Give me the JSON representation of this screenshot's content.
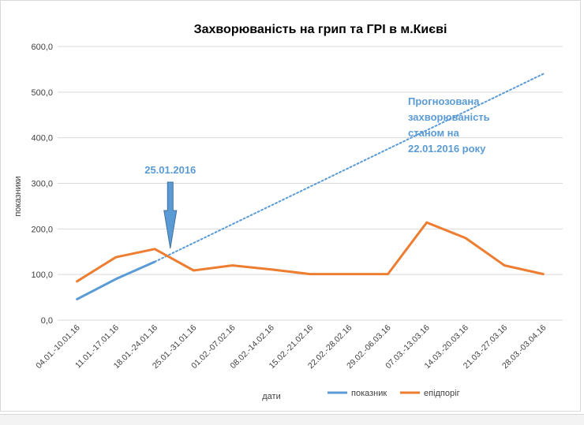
{
  "chart_data": {
    "type": "line",
    "title": "Захворюваність на грип та ГРІ в м.Києві",
    "xlabel": "дати",
    "ylabel": "показники",
    "ylim": [
      0,
      600
    ],
    "yticks": [
      "0,0",
      "100,0",
      "200,0",
      "300,0",
      "400,0",
      "500,0",
      "600,0"
    ],
    "categories": [
      "04.01.-10.01.16",
      "11.01.-17.01.16",
      "18.01.-24.01.16",
      "25.01.-31.01.16",
      "01.02.-07.02.16",
      "08.02.-14.02.16",
      "15.02.-21.02.16",
      "22.02.-28.02.16",
      "29.02.-06.03.16",
      "07.03.-13.03.16",
      "14.03.-20.03.16",
      "21.03.-27.03.16",
      "28.03.-03.04.16"
    ],
    "series": [
      {
        "name": "показник",
        "color": "#5b9bd5",
        "values": [
          46,
          90,
          128,
          null,
          null,
          null,
          null,
          null,
          null,
          null,
          null,
          null,
          null
        ]
      },
      {
        "name": "епідпоріг",
        "color": "#ed7d31",
        "values": [
          85,
          138,
          156,
          109,
          120,
          111,
          101,
          101,
          101,
          214,
          180,
          120,
          101
        ]
      }
    ],
    "forecast": {
      "color": "#5b9bd5",
      "style": "dotted",
      "from": [
        2,
        128
      ],
      "to": [
        12,
        540
      ]
    },
    "annotations": [
      {
        "text": "25.01.2016",
        "category_index": 2.4
      },
      {
        "lines": [
          "Прогнозована",
          "захворюваність",
          "станом на",
          "22.01.2016 року"
        ]
      }
    ],
    "grid": true,
    "legend_position": "bottom"
  }
}
